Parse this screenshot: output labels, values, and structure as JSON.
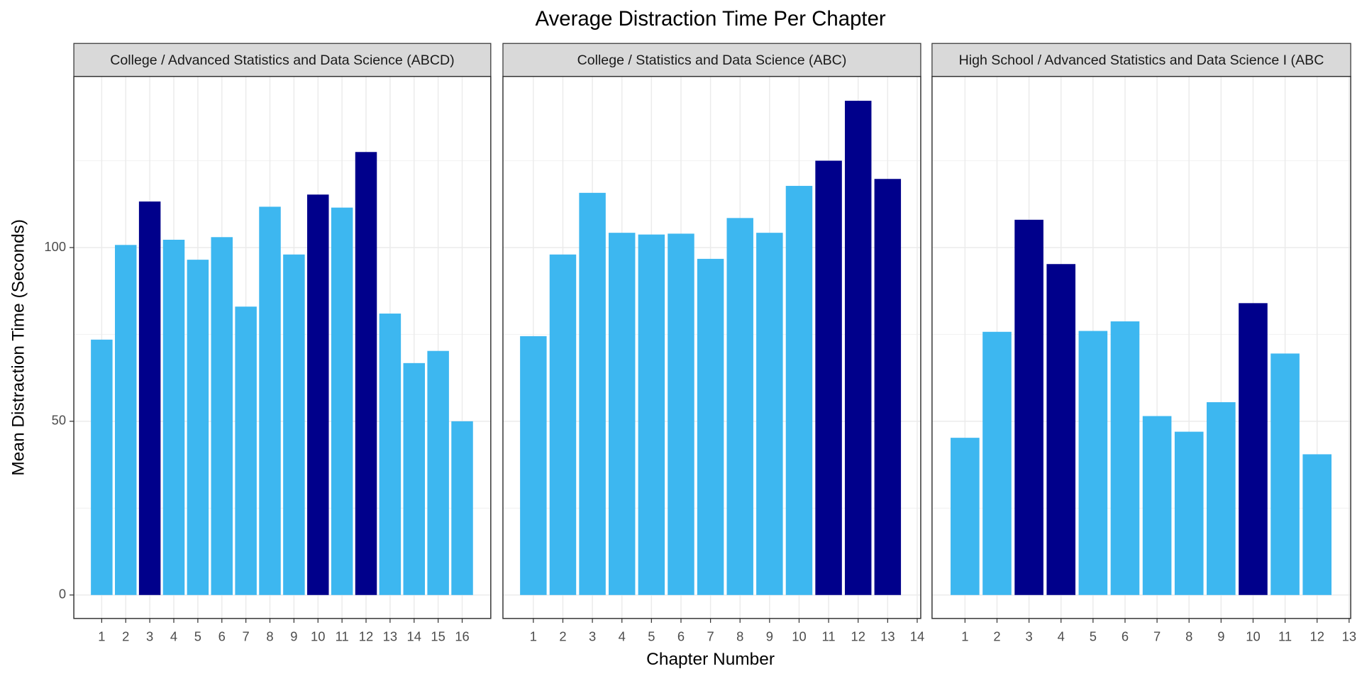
{
  "title": "Average Distraction Time Per Chapter",
  "x_label": "Chapter Number",
  "y_label": "Mean Distraction Time (Seconds)",
  "chart_data": [
    {
      "type": "bar",
      "title": "College / Advanced Statistics and Data Science (ABCD)",
      "x": [
        1,
        2,
        3,
        4,
        5,
        6,
        7,
        8,
        9,
        10,
        11,
        12,
        13,
        14,
        15,
        16
      ],
      "values": [
        73.5,
        100.75,
        113.25,
        102.25,
        96.5,
        103,
        83,
        111.75,
        98,
        115.25,
        111.5,
        127.5,
        81,
        66.75,
        70.25,
        50
      ],
      "colors": [
        "#3db7f0",
        "#3db7f0",
        "#00008b",
        "#3db7f0",
        "#3db7f0",
        "#3db7f0",
        "#3db7f0",
        "#3db7f0",
        "#3db7f0",
        "#00008b",
        "#3db7f0",
        "#00008b",
        "#3db7f0",
        "#3db7f0",
        "#3db7f0",
        "#3db7f0"
      ],
      "xlim": [
        -0.16,
        17.19
      ],
      "xticks": [
        1,
        2,
        3,
        4,
        5,
        6,
        7,
        8,
        9,
        10,
        11,
        12,
        13,
        14,
        15,
        16
      ],
      "ylim": [
        -6.75,
        149.25
      ],
      "yticks": [
        0,
        50,
        100
      ],
      "minor_yticks": [
        25,
        75,
        125
      ],
      "grid": true
    },
    {
      "type": "bar",
      "title": "College / Statistics and Data Science (ABC)",
      "x": [
        1,
        2,
        3,
        4,
        5,
        6,
        7,
        8,
        9,
        10,
        11,
        12,
        13
      ],
      "values": [
        74.5,
        98,
        115.75,
        104.25,
        103.75,
        104,
        96.75,
        108.5,
        104.25,
        117.75,
        125,
        142.25,
        119.75
      ],
      "colors": [
        "#3db7f0",
        "#3db7f0",
        "#3db7f0",
        "#3db7f0",
        "#3db7f0",
        "#3db7f0",
        "#3db7f0",
        "#3db7f0",
        "#3db7f0",
        "#3db7f0",
        "#00008b",
        "#00008b",
        "#00008b"
      ],
      "xlim": [
        -0.03,
        14.12
      ],
      "xticks": [
        1,
        2,
        3,
        4,
        5,
        6,
        7,
        8,
        9,
        10,
        11,
        12,
        13,
        14
      ],
      "ylim": [
        -6.75,
        149.25
      ],
      "yticks": [
        0,
        50,
        100
      ],
      "minor_yticks": [
        25,
        75,
        125
      ],
      "grid": true
    },
    {
      "type": "bar",
      "title": "High School / Advanced Statistics and Data Science I (ABC",
      "x": [
        1,
        2,
        3,
        4,
        5,
        6,
        7,
        8,
        9,
        10,
        11,
        12
      ],
      "values": [
        45.25,
        75.75,
        108,
        95.25,
        76,
        78.75,
        51.5,
        47,
        55.5,
        84,
        69.5,
        40.5
      ],
      "colors": [
        "#3db7f0",
        "#3db7f0",
        "#00008b",
        "#00008b",
        "#3db7f0",
        "#3db7f0",
        "#3db7f0",
        "#3db7f0",
        "#3db7f0",
        "#00008b",
        "#3db7f0",
        "#3db7f0"
      ],
      "xlim": [
        -0.03,
        13.05
      ],
      "xticks": [
        1,
        2,
        3,
        4,
        5,
        6,
        7,
        8,
        9,
        10,
        11,
        12,
        13
      ],
      "ylim": [
        -6.75,
        149.25
      ],
      "yticks": [
        0,
        50,
        100
      ],
      "minor_yticks": [
        25,
        75,
        125
      ],
      "grid": true
    }
  ]
}
